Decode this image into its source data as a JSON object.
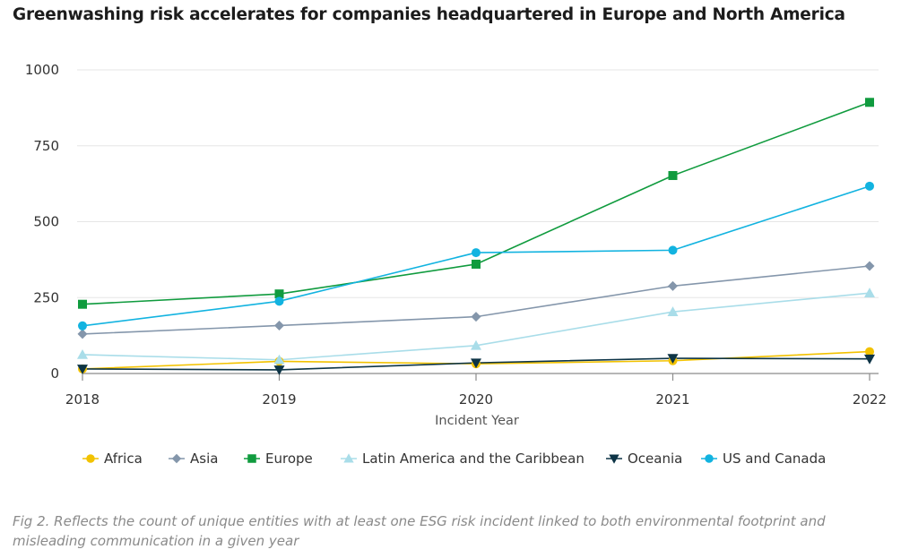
{
  "page": {
    "title": "Greenwashing risk accelerates for companies headquartered in Europe and North America",
    "caption": "Fig 2. Reflects the count of unique entities with at least one ESG risk incident linked to both environmental footprint and misleading communication in a given year"
  },
  "chart_data": {
    "type": "line",
    "title": "Greenwashing risk accelerates for companies headquartered in Europe and North America",
    "xlabel": "Incident Year",
    "ylabel": "",
    "x": [
      2018,
      2019,
      2020,
      2021,
      2022
    ],
    "x_tick_labels": [
      "2018",
      "2019",
      "2020",
      "2021",
      "2022"
    ],
    "ylim": [
      0,
      1000
    ],
    "y_ticks": [
      0,
      250,
      500,
      750,
      1000
    ],
    "y_tick_labels": [
      "0",
      "250",
      "500",
      "750",
      "1000"
    ],
    "grid": "horizontal",
    "legend_position": "bottom",
    "series": [
      {
        "name": "Africa",
        "color": "#f2c200",
        "marker": "circle",
        "values": [
          15,
          40,
          32,
          42,
          72
        ]
      },
      {
        "name": "Asia",
        "color": "#8496ab",
        "marker": "diamond",
        "values": [
          130,
          158,
          187,
          288,
          354
        ]
      },
      {
        "name": "Europe",
        "color": "#109b3e",
        "marker": "square",
        "values": [
          228,
          262,
          360,
          652,
          893
        ]
      },
      {
        "name": "Latin America and the Caribbean",
        "color": "#a9dde9",
        "marker": "triangle-up",
        "values": [
          62,
          45,
          92,
          203,
          265
        ]
      },
      {
        "name": "Oceania",
        "color": "#0d3446",
        "marker": "triangle-down",
        "values": [
          15,
          12,
          35,
          50,
          48
        ]
      },
      {
        "name": "US and Canada",
        "color": "#12b3e0",
        "marker": "circle",
        "values": [
          157,
          238,
          398,
          406,
          617
        ]
      }
    ]
  }
}
